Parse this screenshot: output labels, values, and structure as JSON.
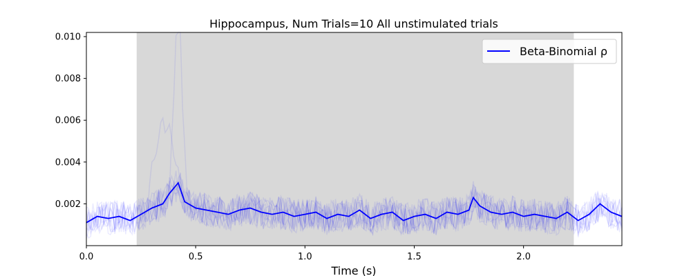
{
  "chart_data": {
    "type": "line",
    "title": "Hippocampus, Num Trials=10 All unstimulated trials",
    "xlabel": "Time (s)",
    "ylabel": "",
    "xlim": [
      0.0,
      2.45
    ],
    "ylim": [
      0.0,
      0.0102
    ],
    "x_ticks": [
      {
        "value": 0.0,
        "label": "0.0"
      },
      {
        "value": 0.5,
        "label": "0.5"
      },
      {
        "value": 1.0,
        "label": "1.0"
      },
      {
        "value": 1.5,
        "label": "1.5"
      },
      {
        "value": 2.0,
        "label": "2.0"
      }
    ],
    "y_ticks": [
      {
        "value": 0.002,
        "label": "0.002"
      },
      {
        "value": 0.004,
        "label": "0.004"
      },
      {
        "value": 0.006,
        "label": "0.006"
      },
      {
        "value": 0.008,
        "label": "0.008"
      },
      {
        "value": 0.01,
        "label": "0.010"
      }
    ],
    "shaded_region": {
      "x_start": 0.23,
      "x_end": 2.23,
      "color": "#d8d8d8"
    },
    "legend": {
      "location": "top-right",
      "entries": [
        "Beta-Binomial ρ"
      ]
    },
    "grid": false,
    "series": [
      {
        "name": "Beta-Binomial ρ",
        "color": "#0000ff",
        "x": [
          0.0,
          0.05,
          0.1,
          0.15,
          0.2,
          0.25,
          0.3,
          0.35,
          0.38,
          0.42,
          0.45,
          0.5,
          0.55,
          0.6,
          0.65,
          0.7,
          0.75,
          0.8,
          0.85,
          0.9,
          0.95,
          1.0,
          1.05,
          1.1,
          1.15,
          1.2,
          1.25,
          1.3,
          1.35,
          1.4,
          1.45,
          1.5,
          1.55,
          1.6,
          1.65,
          1.7,
          1.75,
          1.77,
          1.8,
          1.85,
          1.9,
          1.95,
          2.0,
          2.05,
          2.1,
          2.15,
          2.2,
          2.25,
          2.3,
          2.35,
          2.4,
          2.45
        ],
        "y": [
          0.0011,
          0.0014,
          0.0013,
          0.0014,
          0.0012,
          0.0015,
          0.0018,
          0.002,
          0.0025,
          0.003,
          0.0021,
          0.0018,
          0.0017,
          0.0016,
          0.0015,
          0.0017,
          0.0018,
          0.0016,
          0.0015,
          0.0016,
          0.0014,
          0.0015,
          0.0016,
          0.0013,
          0.0015,
          0.0014,
          0.0017,
          0.0013,
          0.0015,
          0.0016,
          0.0012,
          0.0014,
          0.0015,
          0.0013,
          0.0016,
          0.0015,
          0.0017,
          0.0023,
          0.0019,
          0.0016,
          0.0015,
          0.0016,
          0.0014,
          0.0015,
          0.0014,
          0.0013,
          0.0016,
          0.0012,
          0.0015,
          0.002,
          0.0016,
          0.0014
        ]
      }
    ],
    "background_traces": {
      "count": 10,
      "color": "#0000ff",
      "opacity": 0.08,
      "peak": {
        "x": 0.42,
        "y": 0.0102
      }
    }
  }
}
